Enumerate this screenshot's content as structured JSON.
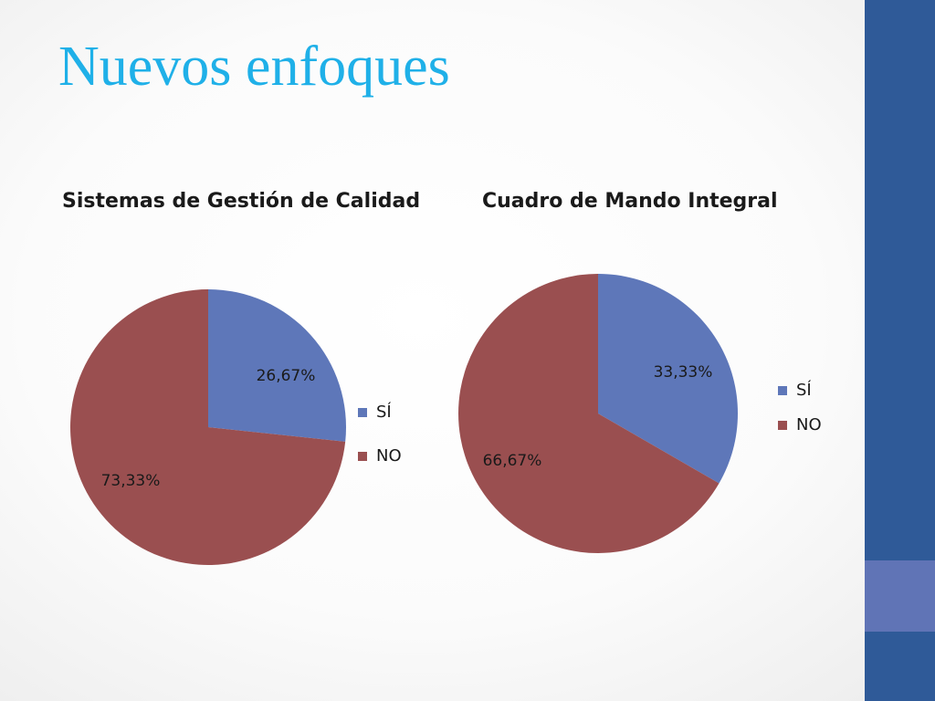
{
  "slide": {
    "title": "Nuevos enfoques"
  },
  "colors": {
    "title": "#1fb0e8",
    "side_bar": "#2f5a98",
    "side_bar_accent": "#6074b6",
    "si": "#5e77b9",
    "no": "#9a4f50"
  },
  "chart_data": [
    {
      "type": "pie",
      "title": "Sistemas de Gestión de Calidad",
      "categories": [
        "SÍ",
        "NO"
      ],
      "values": [
        26.67,
        73.33
      ],
      "labels": [
        "26,67%",
        "73,33%"
      ],
      "legend_position": "right"
    },
    {
      "type": "pie",
      "title": "Cuadro de Mando Integral",
      "categories": [
        "SÍ",
        "NO"
      ],
      "values": [
        33.33,
        66.67
      ],
      "labels": [
        "33,33%",
        "66,67%"
      ],
      "legend_position": "right"
    }
  ]
}
